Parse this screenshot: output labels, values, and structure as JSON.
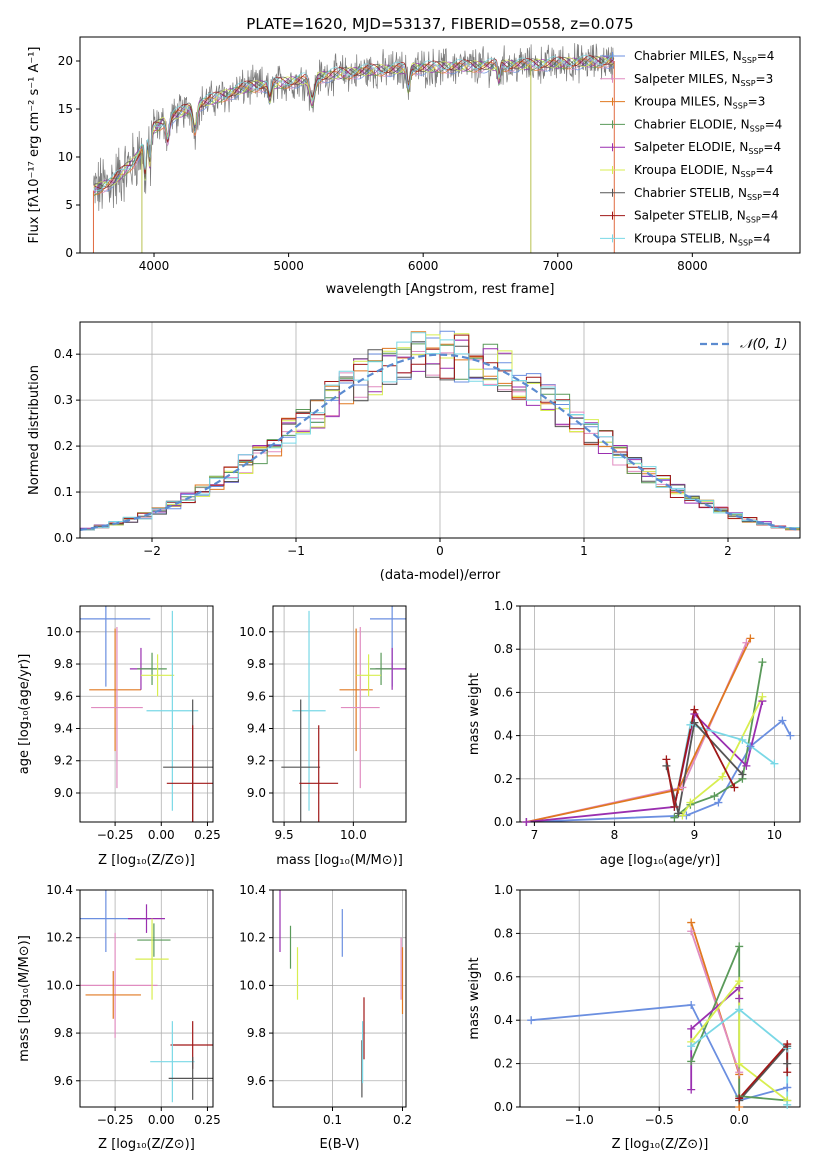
{
  "colors": {
    "Chabrier MILES": "#6b8fe0",
    "Salpeter MILES": "#e08cc0",
    "Kroupa MILES": "#e07820",
    "Chabrier ELODIE": "#5a9a5a",
    "Salpeter ELODIE": "#9a2fb0",
    "Kroupa ELODIE": "#d8ee50",
    "Chabrier STELIB": "#555555",
    "Salpeter STELIB": "#a01818",
    "Kroupa STELIB": "#7ad8e6"
  },
  "chart_data": [
    {
      "id": "spectrum",
      "type": "line",
      "title": "PLATE=1620, MJD=53137, FIBERID=0558, z=0.075",
      "xlabel": "wavelength [Angstrom, rest frame]",
      "ylabel": "Flux [f_λ10^-17 erg cm^-2 s^-1 A^-1]",
      "xlim": [
        3450,
        8800
      ],
      "ylim": [
        0,
        22.5
      ],
      "xticks": [
        4000,
        5000,
        6000,
        7000,
        8000
      ],
      "yticks": [
        0,
        5,
        10,
        15,
        20
      ],
      "grid": false,
      "legend_position": "top-right",
      "legend": [
        {
          "label": "Chabrier MILES",
          "nssp": "4"
        },
        {
          "label": "Salpeter MILES",
          "nssp": "3"
        },
        {
          "label": "Kroupa MILES",
          "nssp": "3"
        },
        {
          "label": "Chabrier ELODIE",
          "nssp": "4"
        },
        {
          "label": "Salpeter ELODIE",
          "nssp": "4"
        },
        {
          "label": "Kroupa ELODIE",
          "nssp": "4"
        },
        {
          "label": "Chabrier STELIB",
          "nssp": "4"
        },
        {
          "label": "Salpeter STELIB",
          "nssp": "4"
        },
        {
          "label": "Kroupa STELIB",
          "nssp": "4"
        }
      ],
      "continuum": {
        "x": [
          3550,
          3700,
          3850,
          4000,
          4150,
          4300,
          4500,
          4700,
          4900,
          5100,
          5300,
          5600,
          5900,
          6200,
          6500,
          6800,
          7100,
          7300,
          7420
        ],
        "y": [
          6.5,
          7.5,
          9.5,
          13.0,
          14.3,
          15.3,
          16.3,
          17.3,
          17.6,
          18.0,
          18.5,
          19.0,
          19.2,
          19.4,
          19.5,
          19.6,
          19.8,
          19.9,
          20.0
        ]
      }
    },
    {
      "id": "residuals",
      "type": "histogram",
      "xlabel": "(data-model)/error",
      "ylabel": "Normed distribution",
      "xlim": [
        -2.5,
        2.5
      ],
      "ylim": [
        0,
        0.47
      ],
      "xticks": [
        -2,
        -1,
        0,
        1,
        2
      ],
      "yticks": [
        0.0,
        0.1,
        0.2,
        0.3,
        0.4
      ],
      "grid": true,
      "legend_position": "top-right",
      "gaussian_label": "𝒩(0, 1)",
      "bin_width": 0.1
    },
    {
      "id": "age-vs-Z",
      "type": "scatter",
      "xlabel": "Z [log10(Z/Z☉)]",
      "ylabel": "age [log10(age/yr)]",
      "xlim": [
        -0.44,
        0.28
      ],
      "ylim": [
        8.82,
        10.16
      ],
      "xticks": [
        -0.25,
        0.0,
        0.25
      ],
      "xtick_labels": [
        "−0.25",
        "0.00",
        "0.25"
      ],
      "yticks": [
        9.0,
        9.2,
        9.4,
        9.6,
        9.8,
        10.0
      ],
      "grid": true,
      "points": [
        {
          "model": "Chabrier MILES",
          "x": -0.3,
          "y": 10.08,
          "xerr": 0.24,
          "yerr": 0.42
        },
        {
          "model": "Kroupa MILES",
          "x": -0.25,
          "y": 9.64,
          "xerr": 0.14,
          "yerr": 0.38
        },
        {
          "model": "Salpeter MILES",
          "x": -0.24,
          "y": 9.53,
          "xerr": 0.14,
          "yerr": 0.5
        },
        {
          "model": "Salpeter ELODIE",
          "x": -0.11,
          "y": 9.77,
          "xerr": 0.06,
          "yerr": 0.13
        },
        {
          "model": "Chabrier ELODIE",
          "x": -0.05,
          "y": 9.77,
          "xerr": 0.08,
          "yerr": 0.1
        },
        {
          "model": "Kroupa ELODIE",
          "x": -0.02,
          "y": 9.73,
          "xerr": 0.09,
          "yerr": 0.13
        },
        {
          "model": "Kroupa STELIB",
          "x": 0.06,
          "y": 9.51,
          "xerr": 0.14,
          "yerr": 0.62
        },
        {
          "model": "Chabrier STELIB",
          "x": 0.17,
          "y": 9.16,
          "xerr": 0.16,
          "yerr": 0.42
        },
        {
          "model": "Salpeter STELIB",
          "x": 0.17,
          "y": 9.06,
          "xerr": 0.14,
          "yerr": 0.36
        }
      ]
    },
    {
      "id": "age-vs-mass",
      "type": "scatter",
      "xlabel": "mass [log10(M/M☉)]",
      "ylabel": "",
      "xlim": [
        9.42,
        10.38
      ],
      "ylim": [
        8.82,
        10.16
      ],
      "xticks": [
        9.5,
        10.0
      ],
      "yticks": [
        9.0,
        9.2,
        9.4,
        9.6,
        9.8,
        10.0
      ],
      "grid": true,
      "points": [
        {
          "model": "Chabrier MILES",
          "x": 10.28,
          "y": 10.08,
          "xerr": 0.16,
          "yerr": 0.42
        },
        {
          "model": "Kroupa MILES",
          "x": 10.02,
          "y": 9.64,
          "xerr": 0.12,
          "yerr": 0.38
        },
        {
          "model": "Salpeter MILES",
          "x": 10.05,
          "y": 9.53,
          "xerr": 0.14,
          "yerr": 0.5
        },
        {
          "model": "Salpeter ELODIE",
          "x": 10.28,
          "y": 9.77,
          "xerr": 0.12,
          "yerr": 0.13
        },
        {
          "model": "Chabrier ELODIE",
          "x": 10.2,
          "y": 9.77,
          "xerr": 0.08,
          "yerr": 0.1
        },
        {
          "model": "Kroupa ELODIE",
          "x": 10.11,
          "y": 9.73,
          "xerr": 0.09,
          "yerr": 0.13
        },
        {
          "model": "Kroupa STELIB",
          "x": 9.68,
          "y": 9.51,
          "xerr": 0.12,
          "yerr": 0.62
        },
        {
          "model": "Chabrier STELIB",
          "x": 9.62,
          "y": 9.16,
          "xerr": 0.14,
          "yerr": 0.42
        },
        {
          "model": "Salpeter STELIB",
          "x": 9.75,
          "y": 9.06,
          "xerr": 0.14,
          "yerr": 0.36
        }
      ]
    },
    {
      "id": "weight-vs-age",
      "type": "line",
      "xlabel": "age [log10(age/yr)]",
      "ylabel": "mass weight",
      "xlim": [
        6.82,
        10.32
      ],
      "ylim": [
        0,
        1.0
      ],
      "xticks": [
        7,
        8,
        9,
        10
      ],
      "yticks": [
        0.0,
        0.2,
        0.4,
        0.6,
        0.8,
        1.0
      ],
      "grid": true,
      "series": [
        {
          "model": "Salpeter MILES",
          "x": [
            6.9,
            8.85,
            9.65
          ],
          "y": [
            0.0,
            0.16,
            0.83
          ]
        },
        {
          "model": "Kroupa MILES",
          "x": [
            6.9,
            8.8,
            9.7
          ],
          "y": [
            0.0,
            0.15,
            0.85
          ]
        },
        {
          "model": "Chabrier MILES",
          "x": [
            6.9,
            8.9,
            9.3,
            9.7,
            10.1,
            10.2
          ],
          "y": [
            0.0,
            0.03,
            0.09,
            0.35,
            0.47,
            0.4
          ]
        },
        {
          "model": "Chabrier ELODIE",
          "x": [
            8.75,
            8.95,
            9.25,
            9.6,
            9.85
          ],
          "y": [
            0.02,
            0.08,
            0.12,
            0.2,
            0.74
          ]
        },
        {
          "model": "Salpeter ELODIE",
          "x": [
            6.9,
            8.75,
            9.0,
            9.65,
            9.85
          ],
          "y": [
            0.0,
            0.07,
            0.5,
            0.26,
            0.56
          ]
        },
        {
          "model": "Kroupa ELODIE",
          "x": [
            8.85,
            8.95,
            9.35,
            9.85
          ],
          "y": [
            0.03,
            0.09,
            0.21,
            0.58
          ]
        },
        {
          "model": "Kroupa STELIB",
          "x": [
            8.75,
            8.95,
            9.6,
            10.0
          ],
          "y": [
            0.07,
            0.45,
            0.38,
            0.27
          ]
        },
        {
          "model": "Chabrier STELIB",
          "x": [
            8.65,
            8.8,
            9.0,
            9.6
          ],
          "y": [
            0.26,
            0.04,
            0.46,
            0.22
          ]
        },
        {
          "model": "Salpeter STELIB",
          "x": [
            8.65,
            8.75,
            9.0,
            9.5
          ],
          "y": [
            0.29,
            0.07,
            0.52,
            0.16
          ]
        }
      ]
    },
    {
      "id": "mass-vs-Z",
      "type": "scatter",
      "xlabel": "Z [log10(Z/Z☉)]",
      "ylabel": "mass [log10(M/M☉)]",
      "xlim": [
        -0.44,
        0.28
      ],
      "ylim": [
        9.49,
        10.4
      ],
      "xticks": [
        -0.25,
        0.0,
        0.25
      ],
      "xtick_labels": [
        "−0.25",
        "0.00",
        "0.25"
      ],
      "yticks": [
        9.6,
        9.8,
        10.0,
        10.2,
        10.4
      ],
      "grid": true,
      "points": [
        {
          "model": "Chabrier MILES",
          "x": -0.3,
          "y": 10.28,
          "xerr": 0.24,
          "yerr": 0.14
        },
        {
          "model": "Salpeter MILES",
          "x": -0.25,
          "y": 10.0,
          "xerr": 0.23,
          "yerr": 0.22
        },
        {
          "model": "Kroupa MILES",
          "x": -0.26,
          "y": 9.96,
          "xerr": 0.15,
          "yerr": 0.1
        },
        {
          "model": "Salpeter ELODIE",
          "x": -0.08,
          "y": 10.28,
          "xerr": 0.1,
          "yerr": 0.06
        },
        {
          "model": "Chabrier ELODIE",
          "x": -0.04,
          "y": 10.19,
          "xerr": 0.09,
          "yerr": 0.07
        },
        {
          "model": "Kroupa ELODIE",
          "x": -0.05,
          "y": 10.11,
          "xerr": 0.09,
          "yerr": 0.17
        },
        {
          "model": "Salpeter STELIB",
          "x": 0.17,
          "y": 9.75,
          "xerr": 0.12,
          "yerr": 0.1
        },
        {
          "model": "Kroupa STELIB",
          "x": 0.06,
          "y": 9.68,
          "xerr": 0.12,
          "yerr": 0.17
        },
        {
          "model": "Chabrier STELIB",
          "x": 0.17,
          "y": 9.61,
          "xerr": 0.13,
          "yerr": 0.09
        }
      ]
    },
    {
      "id": "mass-vs-ebv",
      "type": "scatter",
      "xlabel": "E(B-V)",
      "ylabel": "",
      "xlim": [
        0.015,
        0.205
      ],
      "ylim": [
        9.49,
        10.4
      ],
      "xticks": [
        0.1,
        0.2
      ],
      "yticks": [
        9.6,
        9.8,
        10.0,
        10.2,
        10.4
      ],
      "grid": true,
      "points": [
        {
          "model": "Salpeter ELODIE",
          "x": 0.025,
          "y": 10.28,
          "xerr": 0,
          "yerr": 0.14
        },
        {
          "model": "Chabrier ELODIE",
          "x": 0.04,
          "y": 10.16,
          "xerr": 0,
          "yerr": 0.09
        },
        {
          "model": "Kroupa ELODIE",
          "x": 0.05,
          "y": 10.05,
          "xerr": 0,
          "yerr": 0.11
        },
        {
          "model": "Chabrier MILES",
          "x": 0.114,
          "y": 10.22,
          "xerr": 0,
          "yerr": 0.1
        },
        {
          "model": "Salpeter STELIB",
          "x": 0.145,
          "y": 9.82,
          "xerr": 0,
          "yerr": 0.13
        },
        {
          "model": "Chabrier STELIB",
          "x": 0.142,
          "y": 9.65,
          "xerr": 0,
          "yerr": 0.12
        },
        {
          "model": "Kroupa STELIB",
          "x": 0.143,
          "y": 9.72,
          "xerr": 0,
          "yerr": 0.13
        },
        {
          "model": "Salpeter MILES",
          "x": 0.198,
          "y": 10.07,
          "xerr": 0,
          "yerr": 0.13
        },
        {
          "model": "Kroupa MILES",
          "x": 0.2,
          "y": 10.02,
          "xerr": 0,
          "yerr": 0.14
        }
      ]
    },
    {
      "id": "weight-vs-Z",
      "type": "line",
      "xlabel": "Z [log10(Z/Z☉)]",
      "ylabel": "mass weight",
      "xlim": [
        -1.37,
        0.38
      ],
      "ylim": [
        0,
        1.0
      ],
      "xticks": [
        -1.0,
        -0.5,
        0.0
      ],
      "xtick_labels": [
        "−1.0",
        "−0.5",
        "0.0"
      ],
      "yticks": [
        0.0,
        0.2,
        0.4,
        0.6,
        0.8,
        1.0
      ],
      "grid": true,
      "series": [
        {
          "model": "Chabrier MILES",
          "x": [
            -1.3,
            -0.3,
            0.0,
            0.3,
            0.3
          ],
          "y": [
            0.4,
            0.47,
            0.03,
            0.09,
            0.09
          ]
        },
        {
          "model": "Kroupa MILES",
          "x": [
            -0.3,
            0.0,
            0.0
          ],
          "y": [
            0.85,
            0.15,
            0.0
          ]
        },
        {
          "model": "Salpeter MILES",
          "x": [
            -0.3,
            0.0
          ],
          "y": [
            0.81,
            0.16
          ]
        },
        {
          "model": "Chabrier ELODIE",
          "x": [
            -0.3,
            0.0,
            0.0,
            0.3
          ],
          "y": [
            0.21,
            0.74,
            0.05,
            0.03
          ]
        },
        {
          "model": "Salpeter ELODIE",
          "x": [
            -0.3,
            -0.3,
            0.0,
            0.0
          ],
          "y": [
            0.08,
            0.36,
            0.55,
            0.5
          ]
        },
        {
          "model": "Kroupa ELODIE",
          "x": [
            -0.3,
            0.0,
            0.0,
            0.3
          ],
          "y": [
            0.3,
            0.58,
            0.2,
            0.03
          ]
        },
        {
          "model": "Kroupa STELIB",
          "x": [
            -0.3,
            0.0,
            0.3,
            0.3
          ],
          "y": [
            0.28,
            0.45,
            0.27,
            0.01
          ]
        },
        {
          "model": "Chabrier STELIB",
          "x": [
            0.0,
            0.3,
            0.3
          ],
          "y": [
            0.03,
            0.28,
            0.2
          ]
        },
        {
          "model": "Salpeter STELIB",
          "x": [
            0.0,
            0.3,
            0.3
          ],
          "y": [
            0.04,
            0.29,
            0.16
          ]
        }
      ]
    }
  ]
}
